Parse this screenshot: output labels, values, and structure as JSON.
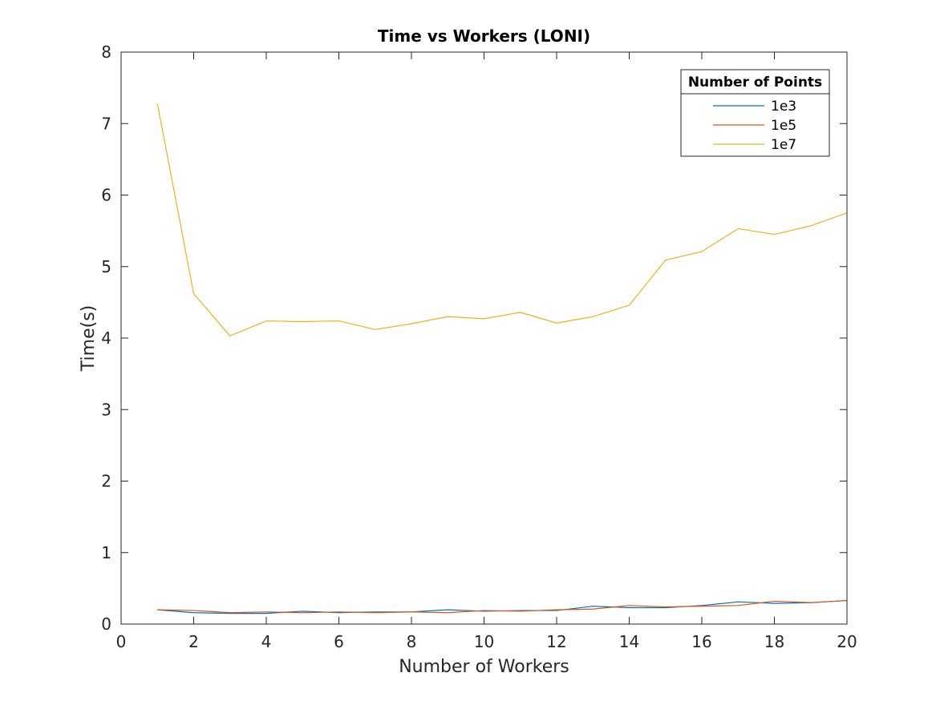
{
  "chart_data": {
    "type": "line",
    "title": "Time vs Workers (LONI)",
    "xlabel": "Number of Workers",
    "ylabel": "Time(s)",
    "xlim": [
      0,
      20
    ],
    "ylim": [
      0,
      8
    ],
    "xticks": [
      0,
      2,
      4,
      6,
      8,
      10,
      12,
      14,
      16,
      18,
      20
    ],
    "yticks": [
      0,
      1,
      2,
      3,
      4,
      5,
      6,
      7,
      8
    ],
    "grid": false,
    "legend": {
      "title": "Number of Points",
      "placement": "top-right"
    },
    "x": [
      1,
      2,
      3,
      4,
      5,
      6,
      7,
      8,
      9,
      10,
      11,
      12,
      13,
      14,
      15,
      16,
      17,
      18,
      19,
      20
    ],
    "series": [
      {
        "name": "1e3",
        "color": "#0072BD",
        "values": [
          0.2,
          0.16,
          0.15,
          0.15,
          0.18,
          0.16,
          0.17,
          0.17,
          0.2,
          0.18,
          0.19,
          0.19,
          0.25,
          0.23,
          0.23,
          0.26,
          0.31,
          0.29,
          0.3,
          0.33
        ]
      },
      {
        "name": "1e5",
        "color": "#D95319",
        "values": [
          0.2,
          0.19,
          0.16,
          0.17,
          0.16,
          0.17,
          0.16,
          0.17,
          0.16,
          0.19,
          0.18,
          0.2,
          0.21,
          0.26,
          0.24,
          0.25,
          0.26,
          0.32,
          0.3,
          0.33
        ]
      },
      {
        "name": "1e7",
        "color": "#EDB120",
        "values": [
          7.28,
          4.62,
          4.03,
          4.24,
          4.23,
          4.24,
          4.12,
          4.2,
          4.3,
          4.27,
          4.36,
          4.21,
          4.3,
          4.46,
          5.09,
          5.21,
          5.53,
          5.45,
          5.57,
          5.75
        ]
      }
    ]
  }
}
